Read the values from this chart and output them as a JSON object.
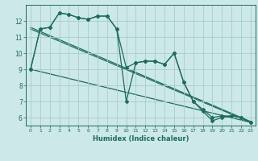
{
  "title": "",
  "xlabel": "Humidex (Indice chaleur)",
  "bg_color": "#cce8e8",
  "line_color": "#1e6b5e",
  "grid_color": "#aacccc",
  "xlim": [
    -0.5,
    23.5
  ],
  "ylim": [
    5.5,
    13.0
  ],
  "yticks": [
    6,
    7,
    8,
    9,
    10,
    11,
    12
  ],
  "xticks": [
    0,
    1,
    2,
    3,
    4,
    5,
    6,
    7,
    8,
    9,
    10,
    11,
    12,
    13,
    14,
    15,
    16,
    17,
    18,
    19,
    20,
    21,
    22,
    23
  ],
  "series1_x": [
    0,
    1,
    2,
    3,
    4,
    5,
    6,
    7,
    8,
    9,
    10,
    11,
    12,
    13,
    14,
    15,
    16,
    17,
    18,
    19,
    20,
    21,
    22,
    23
  ],
  "series1_y": [
    9.0,
    11.5,
    11.6,
    12.5,
    12.4,
    12.2,
    12.1,
    12.3,
    12.3,
    11.5,
    9.1,
    9.4,
    9.5,
    9.5,
    9.3,
    10.0,
    8.2,
    7.0,
    6.5,
    6.0,
    6.1,
    6.1,
    6.0,
    5.7
  ],
  "series2_x": [
    0,
    1,
    2,
    3,
    4,
    5,
    6,
    7,
    8,
    9,
    10,
    11,
    12,
    13,
    14,
    15,
    16,
    17,
    18,
    19,
    20,
    21,
    22,
    23
  ],
  "series2_y": [
    9.0,
    11.5,
    11.6,
    12.5,
    12.4,
    12.2,
    12.1,
    12.3,
    12.3,
    11.5,
    7.0,
    9.4,
    9.5,
    9.5,
    9.3,
    10.0,
    8.2,
    7.0,
    6.4,
    5.8,
    6.0,
    6.1,
    6.0,
    5.7
  ],
  "line1_x": [
    0,
    23
  ],
  "line1_y": [
    9.0,
    5.7
  ],
  "line2_x": [
    0,
    23
  ],
  "line2_y": [
    11.5,
    5.7
  ],
  "line3_x": [
    0,
    23
  ],
  "line3_y": [
    11.6,
    5.75
  ]
}
